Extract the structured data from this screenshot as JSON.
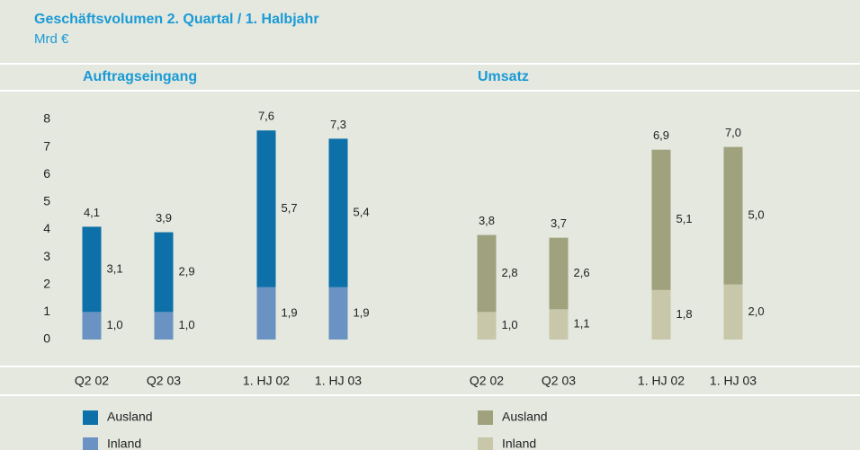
{
  "title": "Geschäftsvolumen 2. Quartal / 1. Halbjahr",
  "subtitle": "Mrd €",
  "chart_data": [
    {
      "type": "bar",
      "stacked": true,
      "title": "Auftragseingang",
      "categories": [
        "Q2 02",
        "Q2 03",
        "1. HJ 02",
        "1. HJ 03"
      ],
      "series": [
        {
          "name": "Ausland",
          "color": "#0d70a8",
          "values": [
            3.1,
            2.9,
            5.7,
            5.4
          ],
          "value_labels": [
            "3,1",
            "2,9",
            "5,7",
            "5,4"
          ]
        },
        {
          "name": "Inland",
          "color": "#6a93c3",
          "values": [
            1.0,
            1.0,
            1.9,
            1.9
          ],
          "value_labels": [
            "1,0",
            "1,0",
            "1,9",
            "1,9"
          ]
        }
      ],
      "totals": [
        4.1,
        3.9,
        7.6,
        7.3
      ],
      "total_labels": [
        "4,1",
        "3,9",
        "7,6",
        "7,3"
      ],
      "ylim": [
        0,
        8
      ],
      "yticks": [
        0,
        1,
        2,
        3,
        4,
        5,
        6,
        7,
        8
      ]
    },
    {
      "type": "bar",
      "stacked": true,
      "title": "Umsatz",
      "categories": [
        "Q2 02",
        "Q2 03",
        "1. HJ 02",
        "1. HJ 03"
      ],
      "series": [
        {
          "name": "Ausland",
          "color": "#9fa27d",
          "values": [
            2.8,
            2.6,
            5.1,
            5.0
          ],
          "value_labels": [
            "2,8",
            "2,6",
            "5,1",
            "5,0"
          ]
        },
        {
          "name": "Inland",
          "color": "#c9c7a9",
          "values": [
            1.0,
            1.1,
            1.8,
            2.0
          ],
          "value_labels": [
            "1,0",
            "1,1",
            "1,8",
            "2,0"
          ]
        }
      ],
      "totals": [
        3.8,
        3.7,
        6.9,
        7.0
      ],
      "total_labels": [
        "3,8",
        "3,7",
        "6,9",
        "7,0"
      ],
      "ylim": [
        0,
        8
      ]
    }
  ]
}
